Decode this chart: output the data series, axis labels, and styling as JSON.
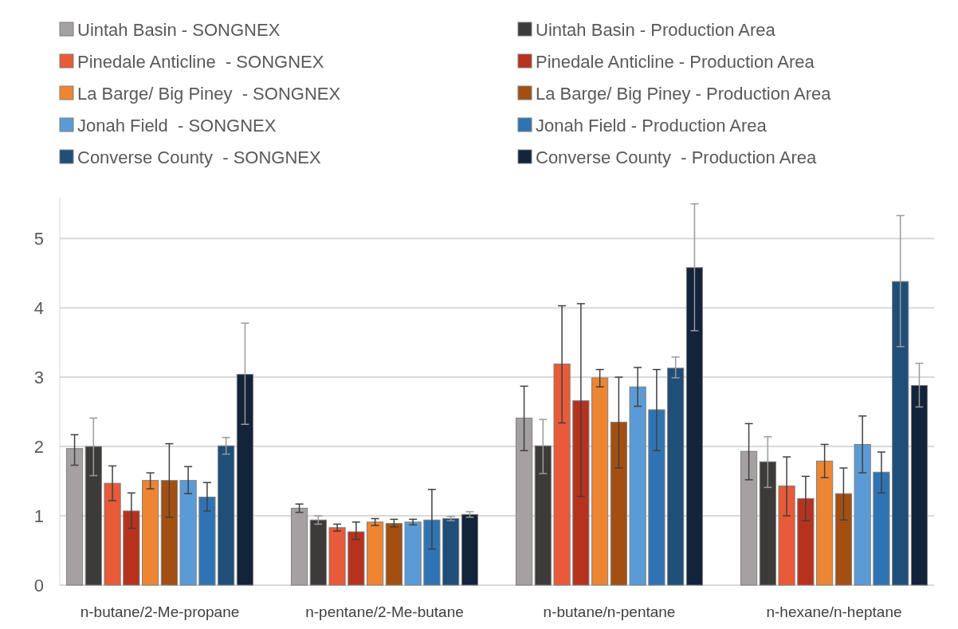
{
  "chart_data": {
    "type": "bar",
    "categories": [
      "n-butane/2-Me-propane",
      "n-pentane/2-Me-butane",
      "n-butane/n-pentane",
      "n-hexane/n-heptane"
    ],
    "series": [
      {
        "name": "Uintah Basin - SONGNEX",
        "color": "#a5a0a1",
        "values": [
          1.97,
          1.11,
          2.41,
          1.93
        ],
        "errors": [
          [
            1.73,
            2.17
          ],
          [
            1.05,
            1.17
          ],
          [
            1.94,
            2.87
          ],
          [
            1.52,
            2.33
          ]
        ]
      },
      {
        "name": "Uintah Basin - Production Area",
        "color": "#3d3a3a",
        "values": [
          2.0,
          0.94,
          2.01,
          1.78
        ],
        "errors": [
          [
            1.58,
            2.41
          ],
          [
            0.88,
            1.0
          ],
          [
            1.61,
            2.39
          ],
          [
            1.41,
            2.14
          ]
        ]
      },
      {
        "name": "Pinedale Anticline  - SONGNEX",
        "color": "#e85a38",
        "values": [
          1.47,
          0.83,
          3.19,
          1.43
        ],
        "errors": [
          [
            1.22,
            1.72
          ],
          [
            0.78,
            0.88
          ],
          [
            2.34,
            4.03
          ],
          [
            1.0,
            1.85
          ]
        ]
      },
      {
        "name": "Pinedale Anticline - Production Area",
        "color": "#b7321d",
        "values": [
          1.07,
          0.77,
          2.66,
          1.25
        ],
        "errors": [
          [
            0.82,
            1.33
          ],
          [
            0.66,
            0.91
          ],
          [
            1.28,
            4.06
          ],
          [
            0.93,
            1.57
          ]
        ]
      },
      {
        "name": "La Barge/ Big Piney  - SONGNEX",
        "color": "#ed8533",
        "values": [
          1.51,
          0.91,
          2.99,
          1.79
        ],
        "errors": [
          [
            1.39,
            1.62
          ],
          [
            0.86,
            0.96
          ],
          [
            2.86,
            3.11
          ],
          [
            1.55,
            2.03
          ]
        ]
      },
      {
        "name": "La Barge/ Big Piney - Production Area",
        "color": "#a44f12",
        "values": [
          1.51,
          0.89,
          2.35,
          1.32
        ],
        "errors": [
          [
            0.98,
            2.04
          ],
          [
            0.84,
            0.95
          ],
          [
            1.69,
            3.0
          ],
          [
            0.94,
            1.69
          ]
        ]
      },
      {
        "name": "Jonah Field  - SONGNEX",
        "color": "#5b9bd5",
        "values": [
          1.51,
          0.91,
          2.86,
          2.03
        ],
        "errors": [
          [
            1.32,
            1.71
          ],
          [
            0.87,
            0.95
          ],
          [
            2.58,
            3.14
          ],
          [
            1.62,
            2.44
          ]
        ]
      },
      {
        "name": "Jonah Field - Production Area",
        "color": "#2e74b5",
        "values": [
          1.27,
          0.94,
          2.53,
          1.63
        ],
        "errors": [
          [
            1.07,
            1.48
          ],
          [
            0.52,
            1.38
          ],
          [
            1.94,
            3.11
          ],
          [
            1.33,
            1.92
          ]
        ]
      },
      {
        "name": "Converse County  - SONGNEX",
        "color": "#1f4e79",
        "values": [
          2.01,
          0.96,
          3.13,
          4.38
        ],
        "errors": [
          [
            1.89,
            2.13
          ],
          [
            0.93,
            0.99
          ],
          [
            2.99,
            3.29
          ],
          [
            3.44,
            5.33
          ]
        ]
      },
      {
        "name": "Converse County  - Production Area",
        "color": "#12233a",
        "values": [
          3.04,
          1.02,
          4.58,
          2.88
        ],
        "errors": [
          [
            2.32,
            3.78
          ],
          [
            0.98,
            1.06
          ],
          [
            3.67,
            5.5
          ],
          [
            2.57,
            3.2
          ]
        ]
      }
    ],
    "ylim": [
      0,
      5.6
    ],
    "yticks": [
      0,
      1,
      2,
      3,
      4,
      5
    ],
    "grid": "y",
    "legend": "top"
  }
}
